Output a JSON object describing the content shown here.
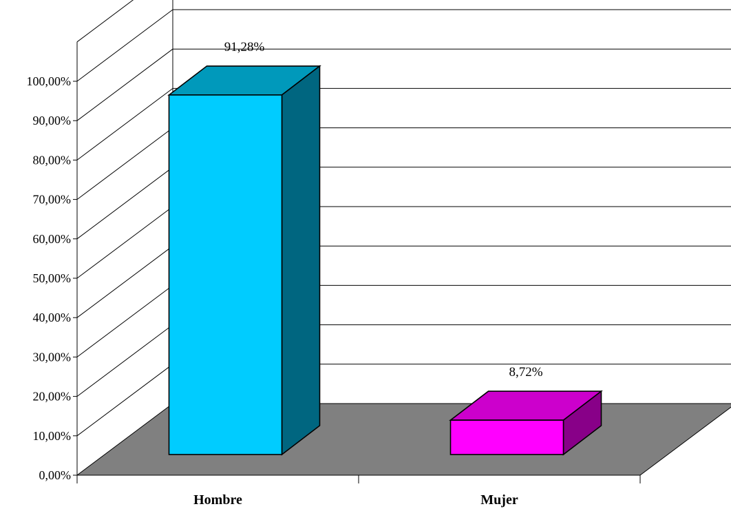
{
  "chart_data": {
    "type": "bar",
    "categories": [
      "Hombre",
      "Mujer"
    ],
    "values": [
      91.28,
      8.72
    ],
    "data_labels": [
      "91,28%",
      "8,72%"
    ],
    "y_tick_labels": [
      "0,00%",
      "10,00%",
      "20,00%",
      "30,00%",
      "40,00%",
      "50,00%",
      "60,00%",
      "70,00%",
      "80,00%",
      "90,00%",
      "100,00%"
    ],
    "ylim": [
      0,
      110
    ],
    "y_tick_step": 10,
    "three_d": true,
    "grid": true,
    "legend": false,
    "title": "",
    "xlabel": "",
    "ylabel": ""
  },
  "colors": {
    "floor": "#808080",
    "bars": [
      {
        "front": "#00CCFF",
        "top": "#0099BB",
        "side": "#006680"
      },
      {
        "front": "#FF00FF",
        "top": "#CC00CC",
        "side": "#880088"
      }
    ]
  }
}
